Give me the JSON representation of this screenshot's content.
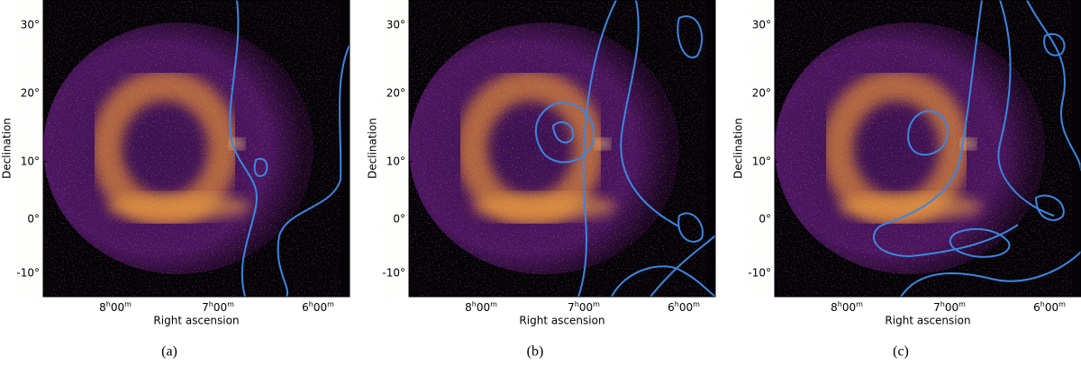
{
  "panels": [
    {
      "caption": "(a)",
      "y_axis_label": "Declination",
      "x_axis_label": "Right ascension",
      "y_ticks": [
        "30°",
        "20°",
        "10°",
        "0°",
        "-10°"
      ],
      "x_ticks": [
        [
          "8",
          "h",
          "00",
          "m"
        ],
        [
          "7",
          "h",
          "00",
          "m"
        ],
        [
          "6",
          "h",
          "00",
          "m"
        ]
      ]
    },
    {
      "caption": "(b)",
      "y_axis_label": "Declination",
      "x_axis_label": "Right ascension",
      "y_ticks": [
        "30°",
        "20°",
        "10°",
        "0°",
        "-10°"
      ],
      "x_ticks": [
        [
          "8",
          "h",
          "00",
          "m"
        ],
        [
          "7",
          "h",
          "00",
          "m"
        ],
        [
          "6",
          "h",
          "00",
          "m"
        ]
      ]
    },
    {
      "caption": "(c)",
      "y_axis_label": "Declination",
      "x_axis_label": "Right ascension",
      "y_ticks": [
        "30°",
        "20°",
        "10°",
        "0°",
        "-10°"
      ],
      "x_ticks": [
        [
          "8",
          "h",
          "00",
          "m"
        ],
        [
          "7",
          "h",
          "00",
          "m"
        ],
        [
          "6",
          "h",
          "00",
          "m"
        ]
      ]
    }
  ]
}
